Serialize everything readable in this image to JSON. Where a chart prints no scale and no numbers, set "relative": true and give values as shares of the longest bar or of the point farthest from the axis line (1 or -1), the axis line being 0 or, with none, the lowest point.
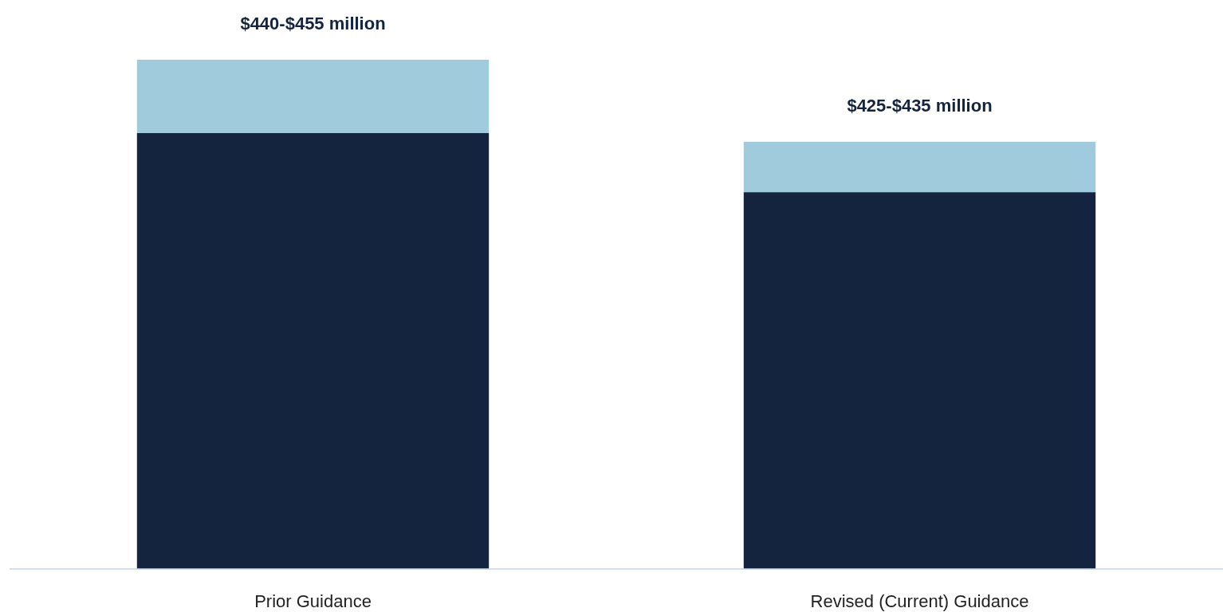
{
  "chart_data": {
    "type": "bar",
    "stacked": true,
    "relative": true,
    "categories": [
      "Prior Guidance",
      "Revised (Current) Guidance"
    ],
    "series": [
      {
        "color": "#14243f",
        "values": [
          0.856,
          0.74
        ]
      },
      {
        "color": "#9fcbdc",
        "values": [
          0.144,
          0.099
        ]
      }
    ],
    "annotations": [
      {
        "text": "$440-$455 million",
        "x": "Prior Guidance",
        "y": 1
      },
      {
        "text": "$425-$435 million",
        "x": "Revised (Current) Guidance",
        "y": 0.839
      }
    ]
  }
}
